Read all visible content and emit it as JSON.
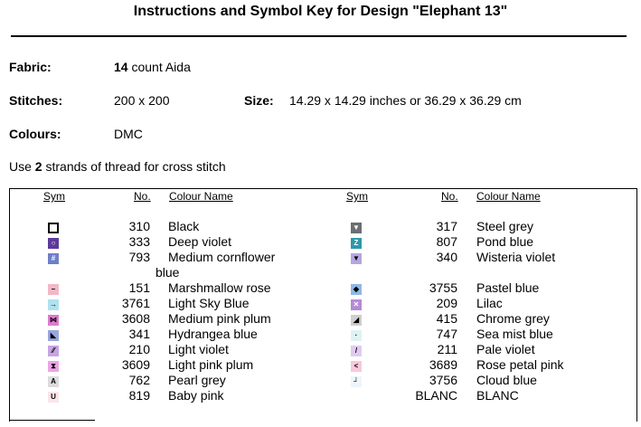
{
  "title": "Instructions and Symbol Key for Design \"Elephant 13\"",
  "fabric": {
    "label": "Fabric:",
    "count": "14",
    "rest": " count Aida"
  },
  "stitches": {
    "label": "Stitches:",
    "value": "200 x 200"
  },
  "size": {
    "label": "Size:",
    "value": "14.29 x 14.29 inches or 36.29 x 36.29 cm"
  },
  "colours": {
    "label": "Colours:",
    "value": "DMC"
  },
  "instruction": {
    "pre": "Use ",
    "strands": "2",
    "post": " strands of thread for cross stitch"
  },
  "headers": {
    "sym": "Sym",
    "no": "No.",
    "name": "Colour Name"
  },
  "left_rows": [
    {
      "no": "310",
      "name": "Black",
      "color": "#ffffff",
      "glyph": "",
      "icon": "black-square-outline-icon"
    },
    {
      "no": "333",
      "name": "Deep violet",
      "color": "#5d3a9b",
      "glyph": "○",
      "icon": "circle-icon"
    },
    {
      "no": "793",
      "name": "Medium cornflower",
      "name2": "blue",
      "color": "#6f7fc8",
      "glyph": "#",
      "icon": "hash-icon"
    },
    {
      "no": "151",
      "name": "Marshmallow rose",
      "color": "#f2b8c6",
      "glyph": "–",
      "icon": "dash-icon"
    },
    {
      "no": "3761",
      "name": "Light Sky Blue",
      "color": "#aee2ef",
      "glyph": "→",
      "icon": "arrow-right-icon"
    },
    {
      "no": "3608",
      "name": "Medium pink plum",
      "color": "#e07ad0",
      "glyph": "⋈",
      "icon": "bowtie-icon"
    },
    {
      "no": "341",
      "name": "Hydrangea blue",
      "color": "#9aa6e0",
      "glyph": "◣",
      "icon": "triangle-icon"
    },
    {
      "no": "210",
      "name": "Light violet",
      "color": "#c7a4e3",
      "glyph": "⁄⁄",
      "icon": "slashes-icon"
    },
    {
      "no": "3609",
      "name": "Light pink plum",
      "color": "#eea4e6",
      "glyph": "⧗",
      "icon": "hourglass-icon"
    },
    {
      "no": "762",
      "name": "Pearl grey",
      "color": "#dcdcdc",
      "glyph": "A",
      "icon": "letter-a-icon"
    },
    {
      "no": "819",
      "name": "Baby pink",
      "color": "#fbe4e8",
      "glyph": "U",
      "icon": "letter-u-icon"
    }
  ],
  "right_rows": [
    {
      "no": "317",
      "name": "Steel grey",
      "color": "#6b6e73",
      "glyph": "▼",
      "icon": "down-triangle-icon"
    },
    {
      "no": "807",
      "name": "Pond blue",
      "color": "#2e98a8",
      "glyph": "Z",
      "icon": "letter-z-icon"
    },
    {
      "no": "340",
      "name": "Wisteria violet",
      "color": "#b5a6e0",
      "glyph": "▼",
      "icon": "down-triangle-icon"
    },
    {
      "no": "3755",
      "name": "Pastel blue",
      "color": "#8fb8e6",
      "glyph": "◆",
      "icon": "diamond-icon"
    },
    {
      "no": "209",
      "name": "Lilac",
      "color": "#b48ad6",
      "glyph": "✕",
      "icon": "x-icon"
    },
    {
      "no": "415",
      "name": "Chrome grey",
      "color": "#cfcfd2",
      "glyph": "◢",
      "icon": "corner-triangle-icon"
    },
    {
      "no": "747",
      "name": "Sea mist blue",
      "color": "#dff2f3",
      "glyph": "·",
      "icon": "dot-icon"
    },
    {
      "no": "211",
      "name": "Pale violet",
      "color": "#e0cbf0",
      "glyph": "/",
      "icon": "slash-icon"
    },
    {
      "no": "3689",
      "name": "Rose petal pink",
      "color": "#f8c8dc",
      "glyph": "<",
      "icon": "less-than-icon"
    },
    {
      "no": "3756",
      "name": "Cloud blue",
      "color": "#eef6fb",
      "glyph": "┘",
      "icon": "corner-icon"
    },
    {
      "no": "BLANC",
      "name": "BLANC",
      "color": "#ffffff",
      "glyph": "",
      "icon": "blank-icon"
    }
  ]
}
